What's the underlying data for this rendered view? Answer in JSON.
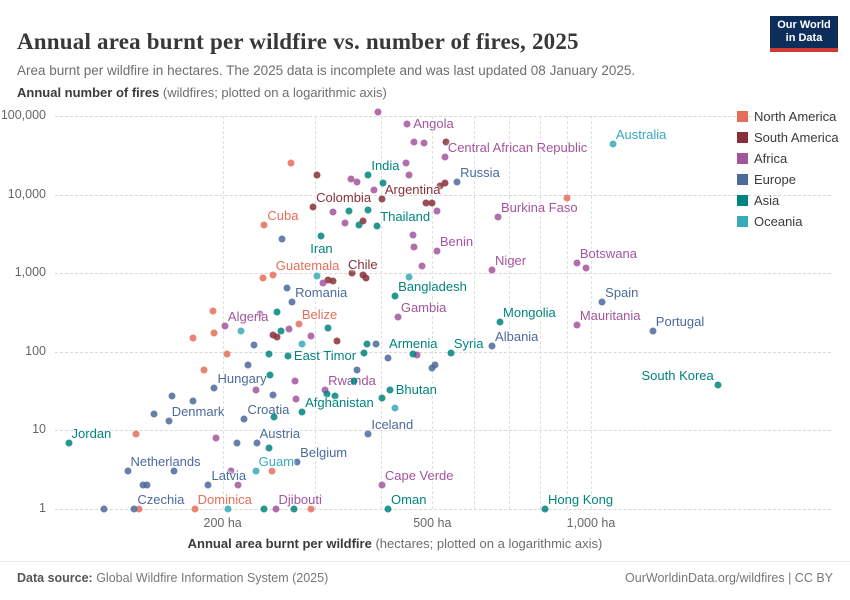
{
  "header": {
    "title": "Annual area burnt per wildfire vs. number of fires, 2025",
    "subtitle": "Area burnt per wildfire in hectares. The 2025 data is incomplete and was last updated 08 January 2025."
  },
  "logo": {
    "line1": "Our World",
    "line2": "in Data"
  },
  "y_axis_title": {
    "bold": "Annual number of fires",
    "rest": " (wildfires; plotted on a logarithmic axis)"
  },
  "x_axis_title": {
    "bold": "Annual area burnt per wildfire",
    "rest": " (hectares; plotted on a logarithmic axis)"
  },
  "footer": {
    "source_label": "Data source:",
    "source_value": " Global Wildfire Information System (2025)",
    "right": "OurWorldinData.org/wildfires | CC BY"
  },
  "chart_data": {
    "type": "scatter",
    "x_scale": "log",
    "y_scale": "log",
    "xlabel": "Annual area burnt per wildfire (hectares)",
    "ylabel": "Annual number of fires (wildfires)",
    "x_ticks": [
      {
        "v": 200,
        "label": "200 ha"
      },
      {
        "v": 500,
        "label": "500 ha"
      },
      {
        "v": 1000,
        "label": "1,000 ha"
      }
    ],
    "x_minor": [
      300,
      400,
      600,
      700,
      800,
      900
    ],
    "y_ticks": [
      {
        "v": 1,
        "label": "1"
      },
      {
        "v": 10,
        "label": "10"
      },
      {
        "v": 100,
        "label": "100"
      },
      {
        "v": 1000,
        "label": "1,000"
      },
      {
        "v": 10000,
        "label": "10,000"
      },
      {
        "v": 100000,
        "label": "100,000"
      }
    ],
    "legend_position": "top-right",
    "series": [
      {
        "name": "North America",
        "color": "#E56E5A",
        "points": [
          {
            "ha": 270,
            "fires": 25000
          },
          {
            "ha": 900,
            "fires": 9000
          },
          {
            "ha": 240,
            "fires": 4100,
            "label": "Cuba",
            "pos": "ar"
          },
          {
            "ha": 249,
            "fires": 950,
            "label": "Guatemala",
            "pos": "ar"
          },
          {
            "ha": 239,
            "fires": 870
          },
          {
            "ha": 192,
            "fires": 330
          },
          {
            "ha": 279,
            "fires": 225,
            "label": "Belize",
            "pos": "ar"
          },
          {
            "ha": 193,
            "fires": 174
          },
          {
            "ha": 176,
            "fires": 150
          },
          {
            "ha": 204,
            "fires": 94
          },
          {
            "ha": 184,
            "fires": 59
          },
          {
            "ha": 137,
            "fires": 9
          },
          {
            "ha": 248,
            "fires": 3
          },
          {
            "ha": 139,
            "fires": 1
          },
          {
            "ha": 177,
            "fires": 1,
            "label": "Dominica",
            "pos": "ar"
          },
          {
            "ha": 294,
            "fires": 1
          }
        ]
      },
      {
        "name": "South America",
        "color": "#883039",
        "points": [
          {
            "ha": 530,
            "fires": 47000
          },
          {
            "ha": 302,
            "fires": 18000
          },
          {
            "ha": 517,
            "fires": 13000
          },
          {
            "ha": 528,
            "fires": 14000
          },
          {
            "ha": 401,
            "fires": 8800,
            "label": "Argentina",
            "pos": "ar"
          },
          {
            "ha": 297,
            "fires": 7000,
            "label": "Colombia",
            "pos": "ar"
          },
          {
            "ha": 486,
            "fires": 7800
          },
          {
            "ha": 499,
            "fires": 7800
          },
          {
            "ha": 369,
            "fires": 4600
          },
          {
            "ha": 352,
            "fires": 1000
          },
          {
            "ha": 369,
            "fires": 950,
            "label": "Chile",
            "pos": "a"
          },
          {
            "ha": 317,
            "fires": 810
          },
          {
            "ha": 324,
            "fires": 790
          },
          {
            "ha": 374,
            "fires": 870
          },
          {
            "ha": 249,
            "fires": 164
          },
          {
            "ha": 254,
            "fires": 154
          },
          {
            "ha": 330,
            "fires": 137
          }
        ]
      },
      {
        "name": "Africa",
        "color": "#A2559C",
        "points": [
          {
            "ha": 394,
            "fires": 112000
          },
          {
            "ha": 448,
            "fires": 79000,
            "label": "Angola",
            "pos": "r"
          },
          {
            "ha": 462,
            "fires": 47000
          },
          {
            "ha": 482,
            "fires": 46000
          },
          {
            "ha": 528,
            "fires": 30000,
            "label": "Central African Republic",
            "pos": "ar"
          },
          {
            "ha": 446,
            "fires": 25000
          },
          {
            "ha": 452,
            "fires": 18000
          },
          {
            "ha": 350,
            "fires": 15800
          },
          {
            "ha": 360,
            "fires": 14500
          },
          {
            "ha": 388,
            "fires": 11400
          },
          {
            "ha": 666,
            "fires": 5200,
            "label": "Burkina Faso",
            "pos": "ar"
          },
          {
            "ha": 324,
            "fires": 6000
          },
          {
            "ha": 510,
            "fires": 6200
          },
          {
            "ha": 341,
            "fires": 4400
          },
          {
            "ha": 459,
            "fires": 3100
          },
          {
            "ha": 462,
            "fires": 2150
          },
          {
            "ha": 510,
            "fires": 1900,
            "label": "Benin",
            "pos": "ar"
          },
          {
            "ha": 478,
            "fires": 1240
          },
          {
            "ha": 649,
            "fires": 1100,
            "label": "Niger",
            "pos": "ar"
          },
          {
            "ha": 940,
            "fires": 1350,
            "label": "Botswana",
            "pos": "ar"
          },
          {
            "ha": 978,
            "fires": 1170
          },
          {
            "ha": 310,
            "fires": 750
          },
          {
            "ha": 430,
            "fires": 280,
            "label": "Gambia",
            "pos": "ar"
          },
          {
            "ha": 235,
            "fires": 300
          },
          {
            "ha": 202,
            "fires": 210,
            "label": "Algeria",
            "pos": "ar"
          },
          {
            "ha": 940,
            "fires": 220,
            "label": "Mauritania",
            "pos": "ar"
          },
          {
            "ha": 267,
            "fires": 195
          },
          {
            "ha": 294,
            "fires": 159
          },
          {
            "ha": 468,
            "fires": 91
          },
          {
            "ha": 313,
            "fires": 33,
            "label": "Rwanda",
            "pos": "ar"
          },
          {
            "ha": 231,
            "fires": 33
          },
          {
            "ha": 274,
            "fires": 43
          },
          {
            "ha": 276,
            "fires": 25
          },
          {
            "ha": 194,
            "fires": 8
          },
          {
            "ha": 207,
            "fires": 3
          },
          {
            "ha": 214,
            "fires": 2
          },
          {
            "ha": 401,
            "fires": 2,
            "label": "Cape Verde",
            "pos": "ar"
          },
          {
            "ha": 252,
            "fires": 1,
            "label": "Djibouti",
            "pos": "ar"
          }
        ]
      },
      {
        "name": "Europe",
        "color": "#4C6A9C",
        "points": [
          {
            "ha": 557,
            "fires": 14500,
            "label": "Russia",
            "pos": "ar"
          },
          {
            "ha": 259,
            "fires": 2700
          },
          {
            "ha": 265,
            "fires": 650
          },
          {
            "ha": 271,
            "fires": 430,
            "label": "Romania",
            "pos": "ar"
          },
          {
            "ha": 1050,
            "fires": 430,
            "label": "Spain",
            "pos": "ar"
          },
          {
            "ha": 1310,
            "fires": 185,
            "label": "Portugal",
            "pos": "ar"
          },
          {
            "ha": 649,
            "fires": 118,
            "label": "Albania",
            "pos": "ar"
          },
          {
            "ha": 229,
            "fires": 122
          },
          {
            "ha": 391,
            "fires": 125
          },
          {
            "ha": 223,
            "fires": 68
          },
          {
            "ha": 412,
            "fires": 83
          },
          {
            "ha": 499,
            "fires": 62
          },
          {
            "ha": 506,
            "fires": 68
          },
          {
            "ha": 360,
            "fires": 59
          },
          {
            "ha": 193,
            "fires": 35,
            "label": "Hungary",
            "pos": "ar"
          },
          {
            "ha": 160,
            "fires": 27
          },
          {
            "ha": 176,
            "fires": 24
          },
          {
            "ha": 249,
            "fires": 28
          },
          {
            "ha": 148,
            "fires": 16
          },
          {
            "ha": 158,
            "fires": 13,
            "label": "Denmark",
            "pos": "ar"
          },
          {
            "ha": 220,
            "fires": 14,
            "label": "Croatia",
            "pos": "ar"
          },
          {
            "ha": 378,
            "fires": 9,
            "label": "Iceland",
            "pos": "ar"
          },
          {
            "ha": 232,
            "fires": 7,
            "label": "Austria",
            "pos": "ar"
          },
          {
            "ha": 213,
            "fires": 7
          },
          {
            "ha": 277,
            "fires": 4,
            "label": "Belgium",
            "pos": "ar"
          },
          {
            "ha": 132,
            "fires": 3,
            "label": "Netherlands",
            "pos": "ar"
          },
          {
            "ha": 162,
            "fires": 3
          },
          {
            "ha": 188,
            "fires": 2,
            "label": "Latvia",
            "pos": "ar"
          },
          {
            "ha": 141,
            "fires": 2
          },
          {
            "ha": 144,
            "fires": 2
          },
          {
            "ha": 119,
            "fires": 1
          },
          {
            "ha": 136,
            "fires": 1,
            "label": "Czechia",
            "pos": "ar"
          }
        ]
      },
      {
        "name": "Asia",
        "color": "#00847E",
        "points": [
          {
            "ha": 378,
            "fires": 18000,
            "label": "India",
            "pos": "ar"
          },
          {
            "ha": 403,
            "fires": 14000
          },
          {
            "ha": 347,
            "fires": 6200
          },
          {
            "ha": 378,
            "fires": 6400
          },
          {
            "ha": 393,
            "fires": 4000,
            "label": "Thailand",
            "pos": "ar"
          },
          {
            "ha": 363,
            "fires": 4100
          },
          {
            "ha": 308,
            "fires": 3000,
            "label": "Iran",
            "pos": "b"
          },
          {
            "ha": 425,
            "fires": 510,
            "label": "Bangladesh",
            "pos": "ar"
          },
          {
            "ha": 672,
            "fires": 240,
            "label": "Mongolia",
            "pos": "ar"
          },
          {
            "ha": 254,
            "fires": 320
          },
          {
            "ha": 258,
            "fires": 185
          },
          {
            "ha": 317,
            "fires": 200
          },
          {
            "ha": 266,
            "fires": 88,
            "label": "East Timor",
            "pos": "r"
          },
          {
            "ha": 460,
            "fires": 94,
            "label": "Armenia",
            "pos": "a"
          },
          {
            "ha": 542,
            "fires": 97,
            "label": "Syria",
            "pos": "ar"
          },
          {
            "ha": 371,
            "fires": 97
          },
          {
            "ha": 245,
            "fires": 94
          },
          {
            "ha": 376,
            "fires": 125
          },
          {
            "ha": 246,
            "fires": 51
          },
          {
            "ha": 355,
            "fires": 43
          },
          {
            "ha": 415,
            "fires": 33,
            "label": "Bhutan",
            "pos": "r"
          },
          {
            "ha": 316,
            "fires": 29
          },
          {
            "ha": 327,
            "fires": 27
          },
          {
            "ha": 401,
            "fires": 26
          },
          {
            "ha": 1740,
            "fires": 38,
            "label": "South Korea",
            "pos": "al"
          },
          {
            "ha": 283,
            "fires": 17,
            "label": "Afghanistan",
            "pos": "ar"
          },
          {
            "ha": 250,
            "fires": 15
          },
          {
            "ha": 102,
            "fires": 7,
            "label": "Jordan",
            "pos": "ar"
          },
          {
            "ha": 245,
            "fires": 6
          },
          {
            "ha": 240,
            "fires": 1
          },
          {
            "ha": 273,
            "fires": 1
          },
          {
            "ha": 412,
            "fires": 1,
            "label": "Oman",
            "pos": "ar"
          },
          {
            "ha": 818,
            "fires": 1,
            "label": "Hong Kong",
            "pos": "ar"
          }
        ]
      },
      {
        "name": "Oceania",
        "color": "#38AABA",
        "points": [
          {
            "ha": 1100,
            "fires": 44000,
            "label": "Australia",
            "pos": "ar"
          },
          {
            "ha": 452,
            "fires": 900
          },
          {
            "ha": 302,
            "fires": 920
          },
          {
            "ha": 217,
            "fires": 185
          },
          {
            "ha": 283,
            "fires": 125
          },
          {
            "ha": 425,
            "fires": 19
          },
          {
            "ha": 231,
            "fires": 3,
            "label": "Guam",
            "pos": "ar"
          },
          {
            "ha": 205,
            "fires": 1
          }
        ]
      }
    ]
  }
}
